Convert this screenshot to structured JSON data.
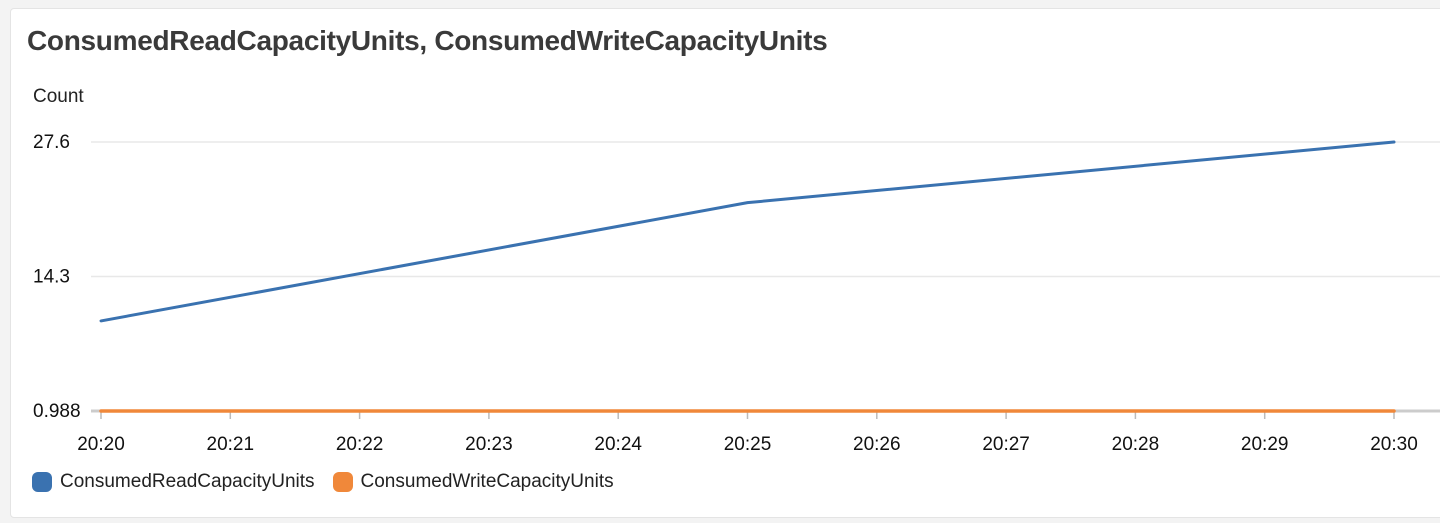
{
  "panel": {
    "title": "ConsumedReadCapacityUnits, ConsumedWriteCapacityUnits"
  },
  "chart_data": {
    "type": "line",
    "title": "ConsumedReadCapacityUnits, ConsumedWriteCapacityUnits",
    "ylabel": "Count",
    "xlabel": "",
    "x": [
      "20:20",
      "20:21",
      "20:22",
      "20:23",
      "20:24",
      "20:25",
      "20:26",
      "20:27",
      "20:28",
      "20:29",
      "20:30"
    ],
    "y_ticks": [
      "0.988",
      "14.3",
      "27.6"
    ],
    "ylim": [
      0.988,
      27.6
    ],
    "grid": true,
    "legend_position": "bottom-left",
    "series": [
      {
        "name": "ConsumedReadCapacityUnits",
        "color": "#3a72b0",
        "points": [
          {
            "x": "20:20",
            "y": 9.9
          },
          {
            "x": "20:25",
            "y": 21.6
          },
          {
            "x": "20:30",
            "y": 27.6
          }
        ]
      },
      {
        "name": "ConsumedWriteCapacityUnits",
        "color": "#f0883a",
        "points": [
          {
            "x": "20:20",
            "y": 0.988
          },
          {
            "x": "20:25",
            "y": 0.988
          },
          {
            "x": "20:30",
            "y": 0.988
          }
        ]
      }
    ]
  }
}
